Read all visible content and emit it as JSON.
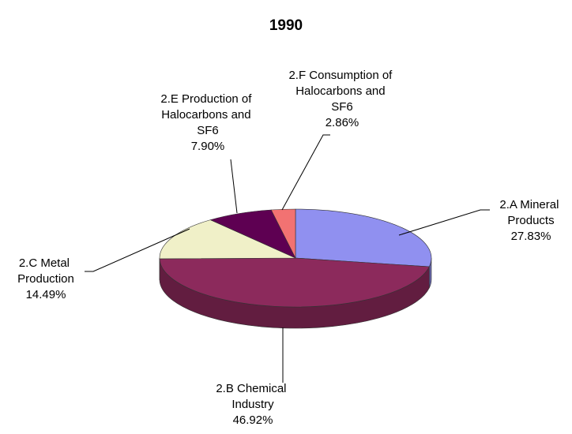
{
  "chart_data": {
    "type": "pie",
    "title": "1990",
    "categories": [
      "2.A Mineral Products",
      "2.B Chemical Industry",
      "2.C Metal Production",
      "2.E Production of Halocarbons and SF6",
      "2.F Consumption of Halocarbons and SF6"
    ],
    "values": [
      27.83,
      46.92,
      14.49,
      7.9,
      2.86
    ],
    "value_labels": [
      "27.83%",
      "46.92%",
      "14.49%",
      "7.90%",
      "2.86%"
    ],
    "colors": [
      "#9090f0",
      "#8c2a5c",
      "#f0f0c8",
      "#5e0052",
      "#f27272"
    ]
  }
}
